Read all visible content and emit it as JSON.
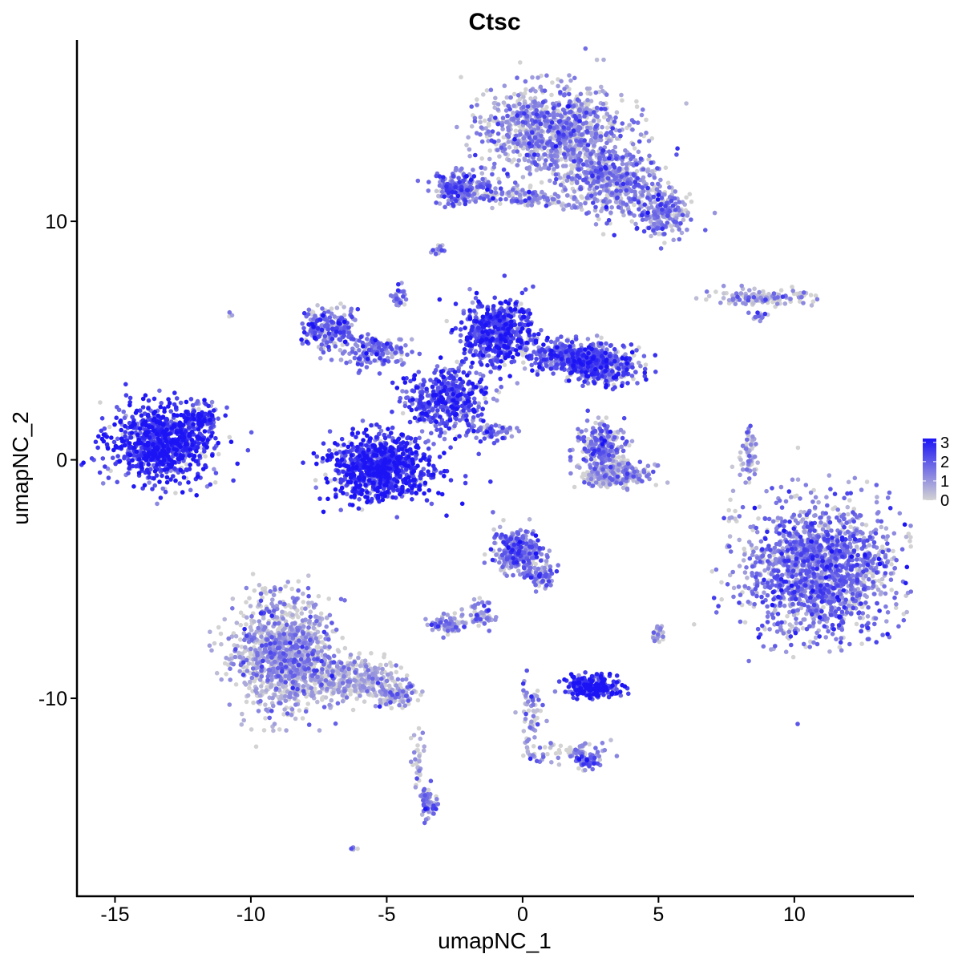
{
  "chart_data": {
    "type": "scatter",
    "title": "Ctsc",
    "xlabel": "umapNC_1",
    "ylabel": "umapNC_2",
    "xlim": [
      -16.4,
      14.4
    ],
    "ylim": [
      -18.3,
      17.6
    ],
    "x_ticks": [
      -15,
      -10,
      -5,
      0,
      5,
      10
    ],
    "x_tick_labels": [
      "-15",
      "-10",
      "-5",
      "0",
      "5",
      "10"
    ],
    "y_ticks": [
      -10,
      0,
      10
    ],
    "y_tick_labels": [
      "-10",
      "0",
      "10"
    ],
    "grid": false,
    "legend": {
      "placement": "right",
      "type": "colorbar",
      "values": [
        "3",
        "2",
        "1",
        "0"
      ],
      "range": [
        0,
        3.2
      ],
      "low_color": "#d3d3d3",
      "high_color": "#1c14f5"
    },
    "point_color_encodes": "expression level",
    "clusters": [
      {
        "cx": -13.3,
        "cy": 0.7,
        "sx": 1.3,
        "sy": 1.05,
        "n": 900,
        "expr": 2.6
      },
      {
        "cx": -11.8,
        "cy": 1.7,
        "sx": 0.45,
        "sy": 0.4,
        "n": 90,
        "expr": 2.3
      },
      {
        "cx": -5.2,
        "cy": -0.3,
        "sx": 1.25,
        "sy": 0.9,
        "n": 900,
        "expr": 2.7
      },
      {
        "cx": -2.8,
        "cy": 2.5,
        "sx": 1.0,
        "sy": 0.9,
        "n": 450,
        "expr": 2.2
      },
      {
        "cx": -0.9,
        "cy": 5.3,
        "sx": 0.85,
        "sy": 0.9,
        "n": 600,
        "expr": 2.3
      },
      {
        "cx": 1.8,
        "cy": 4.3,
        "sx": 1.0,
        "sy": 0.45,
        "n": 400,
        "expr": 1.9
      },
      {
        "cx": 3.0,
        "cy": 3.9,
        "sx": 0.9,
        "sy": 0.5,
        "n": 330,
        "expr": 2.0
      },
      {
        "cx": -7.2,
        "cy": 5.5,
        "sx": 0.6,
        "sy": 0.55,
        "n": 220,
        "expr": 1.8
      },
      {
        "cx": -5.5,
        "cy": 4.6,
        "sx": 0.8,
        "sy": 0.5,
        "n": 150,
        "expr": 1.6
      },
      {
        "cx": -4.5,
        "cy": 6.8,
        "sx": 0.2,
        "sy": 0.3,
        "n": 30,
        "expr": 1.5
      },
      {
        "cx": -1.0,
        "cy": 1.2,
        "sx": 0.55,
        "sy": 0.25,
        "n": 60,
        "expr": 1.5
      },
      {
        "cx": 1.2,
        "cy": 13.8,
        "sx": 1.7,
        "sy": 1.2,
        "n": 1000,
        "expr": 1.1
      },
      {
        "cx": 3.3,
        "cy": 11.7,
        "sx": 1.3,
        "sy": 0.9,
        "n": 500,
        "expr": 1.1
      },
      {
        "cx": 5.2,
        "cy": 10.2,
        "sx": 0.7,
        "sy": 0.6,
        "n": 200,
        "expr": 1.3
      },
      {
        "cx": -2.2,
        "cy": 11.4,
        "sx": 0.75,
        "sy": 0.45,
        "n": 220,
        "expr": 1.6
      },
      {
        "cx": 0.1,
        "cy": 11.0,
        "sx": 1.2,
        "sy": 0.25,
        "n": 120,
        "expr": 1.0
      },
      {
        "cx": -3.1,
        "cy": 8.8,
        "sx": 0.15,
        "sy": 0.15,
        "n": 15,
        "expr": 1.3
      },
      {
        "cx": 8.7,
        "cy": 6.8,
        "sx": 1.1,
        "sy": 0.22,
        "n": 150,
        "expr": 0.6
      },
      {
        "cx": 8.7,
        "cy": 6.0,
        "sx": 0.2,
        "sy": 0.15,
        "n": 15,
        "expr": 0.9
      },
      {
        "cx": 2.9,
        "cy": 0.6,
        "sx": 0.55,
        "sy": 0.7,
        "n": 220,
        "expr": 1.4
      },
      {
        "cx": 3.4,
        "cy": -0.6,
        "sx": 0.85,
        "sy": 0.35,
        "n": 250,
        "expr": 0.7
      },
      {
        "cx": 8.3,
        "cy": 0.1,
        "sx": 0.18,
        "sy": 0.7,
        "n": 60,
        "expr": 0.7
      },
      {
        "cx": 10.9,
        "cy": -4.6,
        "sx": 1.8,
        "sy": 1.8,
        "n": 1600,
        "expr": 1.5
      },
      {
        "cx": -0.2,
        "cy": -3.8,
        "sx": 0.6,
        "sy": 0.6,
        "n": 300,
        "expr": 1.5
      },
      {
        "cx": 0.7,
        "cy": -4.8,
        "sx": 0.35,
        "sy": 0.4,
        "n": 70,
        "expr": 1.3
      },
      {
        "cx": -1.6,
        "cy": -6.5,
        "sx": 0.45,
        "sy": 0.4,
        "n": 60,
        "expr": 1.2
      },
      {
        "cx": -2.8,
        "cy": -6.9,
        "sx": 0.45,
        "sy": 0.25,
        "n": 80,
        "expr": 0.9
      },
      {
        "cx": 2.6,
        "cy": -9.5,
        "sx": 0.6,
        "sy": 0.3,
        "n": 220,
        "expr": 2.8
      },
      {
        "cx": -8.8,
        "cy": -8.2,
        "sx": 1.2,
        "sy": 1.5,
        "n": 1100,
        "expr": 0.8
      },
      {
        "cx": -6.3,
        "cy": -9.2,
        "sx": 1.3,
        "sy": 0.6,
        "n": 350,
        "expr": 0.6
      },
      {
        "cx": -4.7,
        "cy": -9.9,
        "sx": 0.5,
        "sy": 0.25,
        "n": 100,
        "expr": 0.5
      },
      {
        "cx": -3.5,
        "cy": -14.4,
        "sx": 0.2,
        "sy": 0.45,
        "n": 60,
        "expr": 1.4
      },
      {
        "cx": -3.9,
        "cy": -12.5,
        "sx": 0.15,
        "sy": 0.9,
        "n": 30,
        "expr": 0.4
      },
      {
        "cx": 0.3,
        "cy": -10.8,
        "sx": 0.3,
        "sy": 1.0,
        "n": 60,
        "expr": 1.0
      },
      {
        "cx": 1.8,
        "cy": -12.3,
        "sx": 1.0,
        "sy": 0.3,
        "n": 80,
        "expr": 0.9
      },
      {
        "cx": 2.4,
        "cy": -12.7,
        "sx": 0.25,
        "sy": 0.2,
        "n": 40,
        "expr": 1.8
      },
      {
        "cx": 5.0,
        "cy": -7.3,
        "sx": 0.2,
        "sy": 0.25,
        "n": 30,
        "expr": 0.9
      },
      {
        "cx": -6.2,
        "cy": -16.3,
        "sx": 0.1,
        "sy": 0.08,
        "n": 5,
        "expr": 0.8
      },
      {
        "cx": -10.7,
        "cy": 6.1,
        "sx": 0.08,
        "sy": 0.08,
        "n": 4,
        "expr": 1.8
      },
      {
        "cx": 7.7,
        "cy": -2.1,
        "sx": 0.15,
        "sy": 0.4,
        "n": 8,
        "expr": 0.3
      }
    ]
  }
}
